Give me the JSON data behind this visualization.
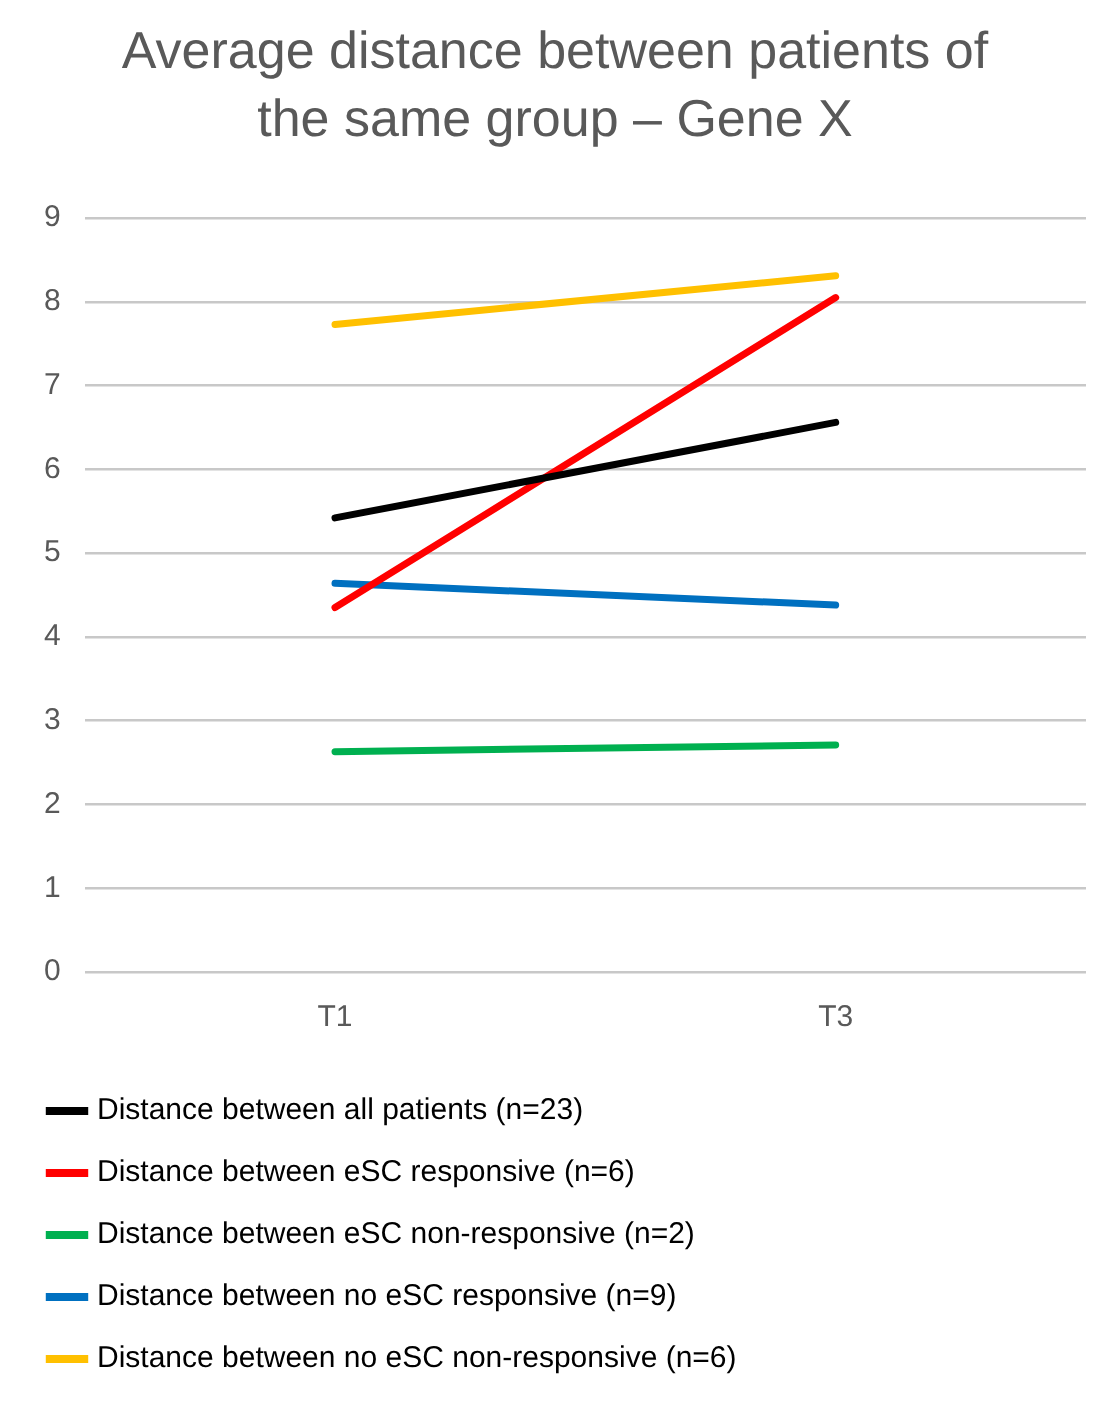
{
  "chart_data": {
    "type": "line",
    "title": "Average distance between patients of the same group – Gene X",
    "categories": [
      "T1",
      "T3"
    ],
    "series": [
      {
        "name": "Distance between all patients (n=23)",
        "color": "#000000",
        "values": [
          5.42,
          6.56
        ]
      },
      {
        "name": "Distance between eSC responsive (n=6)",
        "color": "#ff0000",
        "values": [
          4.35,
          8.05
        ]
      },
      {
        "name": "Distance between eSC non-responsive (n=2)",
        "color": "#00b050",
        "values": [
          2.63,
          2.71
        ]
      },
      {
        "name": "Distance between no eSC responsive (n=9)",
        "color": "#0070c0",
        "values": [
          4.64,
          4.38
        ]
      },
      {
        "name": "Distance between no eSC non-responsive (n=6)",
        "color": "#ffc000",
        "values": [
          7.73,
          8.31
        ]
      }
    ],
    "ylim": [
      0,
      9
    ],
    "yticks": [
      0,
      1,
      2,
      3,
      4,
      5,
      6,
      7,
      8,
      9
    ],
    "grid": "y",
    "legend": "bottom",
    "marker": "none",
    "line_style": "solid"
  }
}
